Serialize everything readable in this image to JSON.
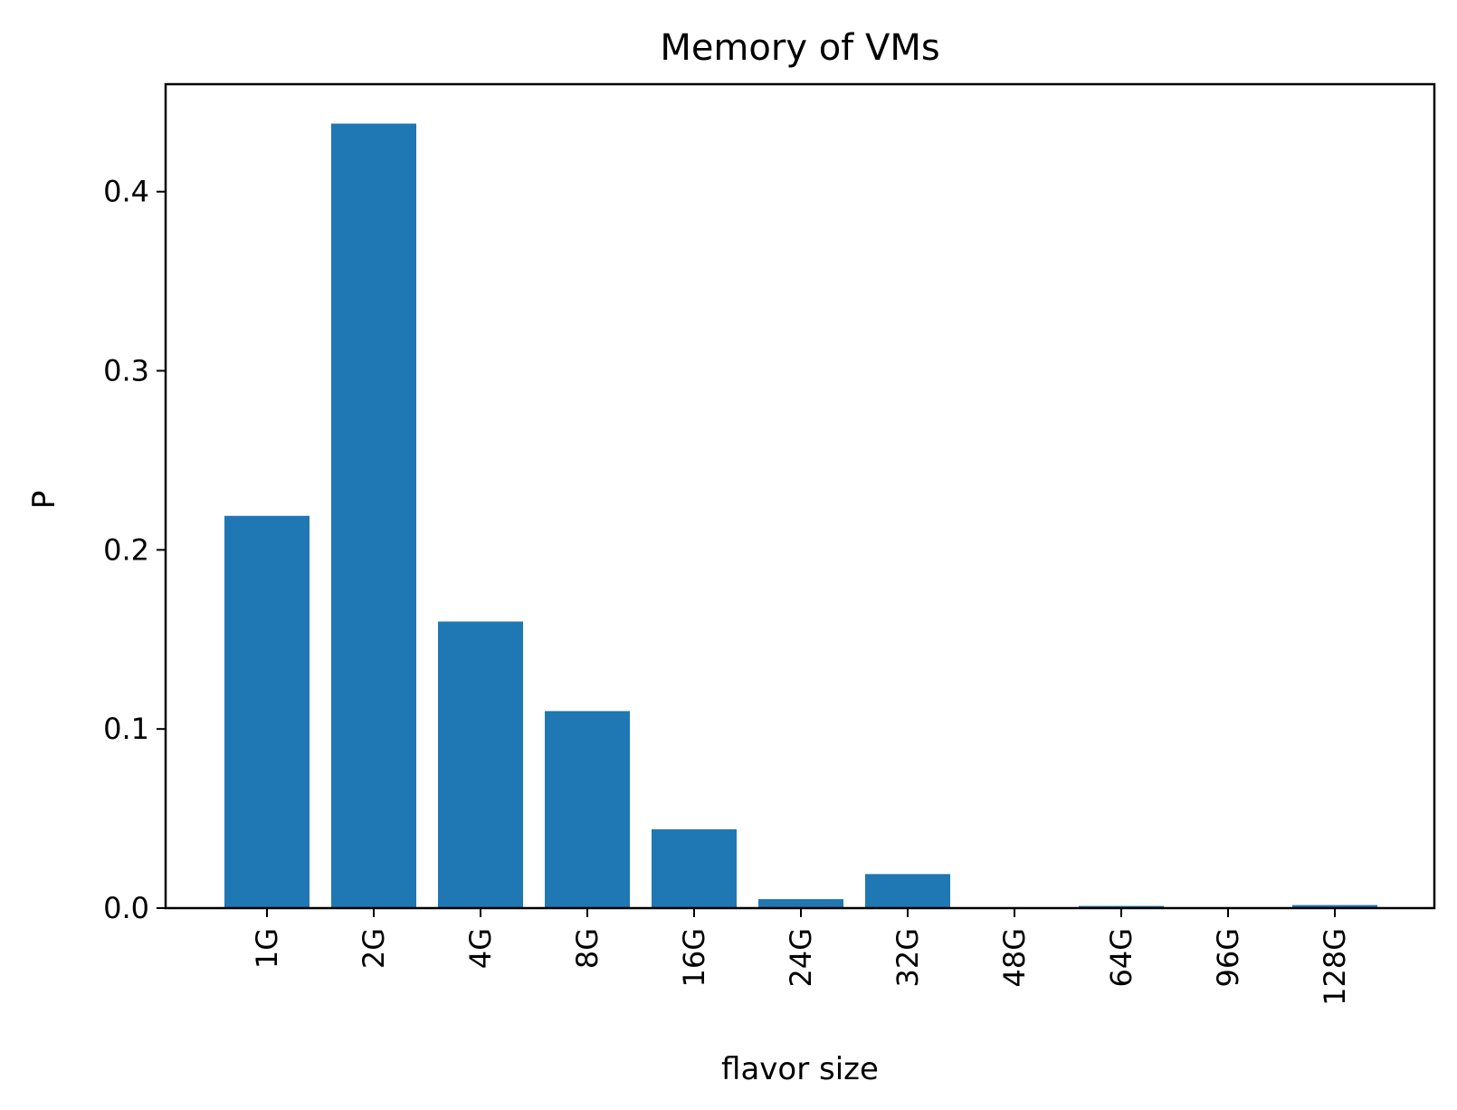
{
  "chart_data": {
    "type": "bar",
    "title": "Memory of VMs",
    "xlabel": "flavor size",
    "ylabel": "P",
    "categories": [
      "1G",
      "2G",
      "4G",
      "8G",
      "16G",
      "24G",
      "32G",
      "48G",
      "64G",
      "96G",
      "128G"
    ],
    "values": [
      0.219,
      0.438,
      0.16,
      0.11,
      0.044,
      0.005,
      0.019,
      0.0004,
      0.0012,
      0.0002,
      0.0017
    ],
    "ylim": [
      0,
      0.46
    ],
    "yticks": [
      0.0,
      0.1,
      0.2,
      0.3,
      0.4
    ],
    "ytick_labels": [
      "0.0",
      "0.1",
      "0.2",
      "0.3",
      "0.4"
    ],
    "bar_color": "#1f77b4",
    "grid": false,
    "legend": "none"
  }
}
